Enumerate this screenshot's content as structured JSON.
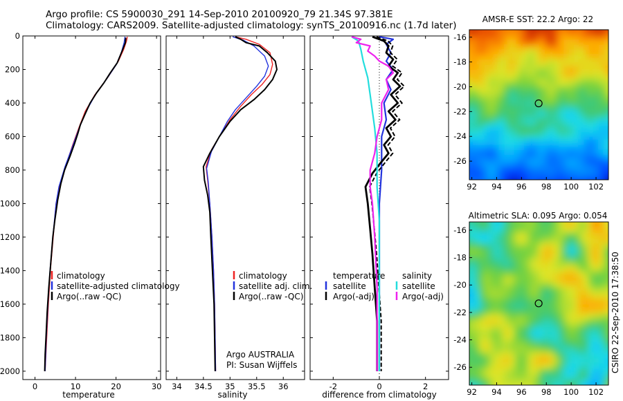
{
  "header": {
    "line1": "Argo profile: CS 5900030_291 14-Sep-2010 20100920_79 21.34S 97.381E",
    "line2": "Climatology: CARS2009. Satellite-adjusted climatology: synTS_20100916.nc (1.7d later)"
  },
  "side_text": "CSIRO 22-Sep-2010 17:38:50",
  "colors": {
    "climatology": "#ee2222",
    "satellite": "#2233dd",
    "argo": "#000000",
    "salinity_satellite": "#22dddd",
    "salinity_argo": "#ee22ee"
  },
  "chart_data": [
    {
      "type": "line",
      "xlabel": "temperature",
      "ylabel": "",
      "xlim": [
        -3,
        31
      ],
      "ylim": [
        2050,
        0
      ],
      "xticks": [
        "0",
        "10",
        "20",
        "30"
      ],
      "yticks": [
        "0",
        "200",
        "400",
        "600",
        "800",
        "1000",
        "1200",
        "1400",
        "1600",
        "1800",
        "2000"
      ],
      "legend": [
        "climatology",
        "satellite-adjusted climatology",
        "Argo(..raw -QC)"
      ],
      "series": [
        {
          "name": "climatology",
          "color": "#ee2222",
          "points": [
            [
              22.8,
              5
            ],
            [
              22.6,
              30
            ],
            [
              21.9,
              80
            ],
            [
              20.6,
              150
            ],
            [
              17.9,
              250
            ],
            [
              14.8,
              350
            ],
            [
              12.4,
              450
            ],
            [
              10.8,
              550
            ],
            [
              9.3,
              650
            ],
            [
              7.5,
              780
            ],
            [
              6.0,
              900
            ],
            [
              5.2,
              1000
            ],
            [
              4.5,
              1200
            ],
            [
              3.8,
              1400
            ],
            [
              3.3,
              1600
            ],
            [
              2.9,
              1800
            ],
            [
              2.5,
              2000
            ]
          ]
        },
        {
          "name": "satellite-adjusted climatology",
          "color": "#2233dd",
          "points": [
            [
              22.2,
              5
            ],
            [
              22.0,
              40
            ],
            [
              21.3,
              100
            ],
            [
              20.1,
              170
            ],
            [
              17.6,
              260
            ],
            [
              14.9,
              350
            ],
            [
              12.6,
              450
            ],
            [
              10.9,
              550
            ],
            [
              9.4,
              650
            ],
            [
              7.4,
              780
            ],
            [
              5.9,
              900
            ],
            [
              5.2,
              1000
            ],
            [
              4.4,
              1200
            ],
            [
              3.7,
              1400
            ],
            [
              3.2,
              1600
            ],
            [
              2.8,
              1800
            ],
            [
              2.5,
              2000
            ]
          ]
        },
        {
          "name": "Argo(..raw -QC)",
          "color": "#000000",
          "points": [
            [
              22.4,
              10
            ],
            [
              22.3,
              40
            ],
            [
              21.5,
              90
            ],
            [
              20.3,
              160
            ],
            [
              18.6,
              220
            ],
            [
              17.0,
              280
            ],
            [
              15.2,
              340
            ],
            [
              13.6,
              400
            ],
            [
              12.3,
              470
            ],
            [
              11.2,
              530
            ],
            [
              10.6,
              580
            ],
            [
              9.8,
              640
            ],
            [
              8.6,
              720
            ],
            [
              7.3,
              800
            ],
            [
              6.4,
              880
            ],
            [
              5.6,
              980
            ],
            [
              4.9,
              1100
            ],
            [
              4.4,
              1200
            ],
            [
              3.9,
              1350
            ],
            [
              3.4,
              1500
            ],
            [
              3.0,
              1650
            ],
            [
              2.7,
              1800
            ],
            [
              2.5,
              1900
            ],
            [
              2.4,
              2000
            ]
          ]
        }
      ]
    },
    {
      "type": "line",
      "xlabel": "salinity",
      "ylabel": "",
      "xlim": [
        33.8,
        36.4
      ],
      "ylim": [
        2050,
        0
      ],
      "xticks": [
        "34",
        "34.5",
        "35",
        "35.5",
        "36"
      ],
      "legend": [
        "climatology",
        "satellite adj. clim.",
        "Argo(..raw -QC)"
      ],
      "annotation": [
        "Argo AUSTRALIA",
        "PI: Susan Wijffels"
      ],
      "series": [
        {
          "name": "climatology",
          "color": "#ee2222",
          "points": [
            [
              35.1,
              5
            ],
            [
              35.3,
              20
            ],
            [
              35.55,
              50
            ],
            [
              35.75,
              100
            ],
            [
              35.8,
              170
            ],
            [
              35.75,
              230
            ],
            [
              35.6,
              290
            ],
            [
              35.4,
              350
            ],
            [
              35.2,
              420
            ],
            [
              35.0,
              500
            ],
            [
              34.82,
              590
            ],
            [
              34.65,
              680
            ],
            [
              34.55,
              780
            ],
            [
              34.58,
              860
            ],
            [
              34.62,
              1000
            ],
            [
              34.66,
              1200
            ],
            [
              34.69,
              1400
            ],
            [
              34.71,
              1600
            ],
            [
              34.72,
              1800
            ],
            [
              34.73,
              2000
            ]
          ]
        },
        {
          "name": "satellite adj. clim.",
          "color": "#2233dd",
          "points": [
            [
              35.05,
              5
            ],
            [
              35.25,
              25
            ],
            [
              35.45,
              60
            ],
            [
              35.65,
              120
            ],
            [
              35.72,
              180
            ],
            [
              35.65,
              240
            ],
            [
              35.5,
              300
            ],
            [
              35.3,
              370
            ],
            [
              35.1,
              440
            ],
            [
              34.95,
              510
            ],
            [
              34.8,
              600
            ],
            [
              34.65,
              690
            ],
            [
              34.56,
              790
            ],
            [
              34.59,
              870
            ],
            [
              34.62,
              1000
            ],
            [
              34.66,
              1200
            ],
            [
              34.69,
              1400
            ],
            [
              34.71,
              1600
            ],
            [
              34.72,
              1800
            ],
            [
              34.73,
              2000
            ]
          ]
        },
        {
          "name": "Argo(..raw -QC)",
          "color": "#000000",
          "points": [
            [
              35.1,
              5
            ],
            [
              35.2,
              20
            ],
            [
              35.3,
              40
            ],
            [
              35.55,
              60
            ],
            [
              35.7,
              100
            ],
            [
              35.85,
              150
            ],
            [
              35.88,
              200
            ],
            [
              35.8,
              260
            ],
            [
              35.65,
              320
            ],
            [
              35.45,
              380
            ],
            [
              35.2,
              440
            ],
            [
              35.0,
              510
            ],
            [
              34.8,
              600
            ],
            [
              34.62,
              700
            ],
            [
              34.5,
              780
            ],
            [
              34.52,
              860
            ],
            [
              34.58,
              950
            ],
            [
              34.62,
              1050
            ],
            [
              34.64,
              1200
            ],
            [
              34.67,
              1400
            ],
            [
              34.7,
              1600
            ],
            [
              34.71,
              1800
            ],
            [
              34.72,
              2000
            ]
          ]
        }
      ]
    },
    {
      "type": "line",
      "xlabel": "difference from climatology",
      "ylabel": "",
      "xlim": [
        -3,
        3
      ],
      "ylim": [
        2050,
        0
      ],
      "xticks": [
        "-2",
        "0",
        "2"
      ],
      "legend_temperature": {
        "heading": "temperature",
        "items": [
          "satellite",
          "Argo(-adj)"
        ]
      },
      "legend_salinity": {
        "heading": "salinity",
        "items": [
          "satellite",
          "Argo(-adj)"
        ]
      },
      "series": [
        {
          "name": "satellite",
          "group": "temperature",
          "color": "#2233dd",
          "points": [
            [
              0.0,
              5
            ],
            [
              0.6,
              20
            ],
            [
              0.3,
              50
            ],
            [
              0.5,
              100
            ],
            [
              0.3,
              150
            ],
            [
              0.6,
              200
            ],
            [
              0.3,
              260
            ],
            [
              0.5,
              320
            ],
            [
              0.2,
              400
            ],
            [
              0.3,
              500
            ],
            [
              0.1,
              600
            ],
            [
              0.1,
              800
            ],
            [
              0.0,
              1000
            ],
            [
              0.0,
              1500
            ],
            [
              0.0,
              2000
            ]
          ]
        },
        {
          "name": "Argo(-adj)",
          "group": "temperature",
          "color": "#000000",
          "points": [
            [
              -0.3,
              5
            ],
            [
              0.2,
              30
            ],
            [
              0.4,
              60
            ],
            [
              0.3,
              100
            ],
            [
              0.6,
              140
            ],
            [
              0.4,
              180
            ],
            [
              0.8,
              220
            ],
            [
              0.6,
              260
            ],
            [
              0.9,
              300
            ],
            [
              0.5,
              350
            ],
            [
              0.8,
              400
            ],
            [
              0.4,
              450
            ],
            [
              0.7,
              500
            ],
            [
              0.3,
              550
            ],
            [
              0.5,
              600
            ],
            [
              0.2,
              650
            ],
            [
              0.4,
              700
            ],
            [
              0.1,
              750
            ],
            [
              -0.3,
              820
            ],
            [
              -0.6,
              900
            ],
            [
              -0.5,
              1000
            ],
            [
              -0.4,
              1150
            ],
            [
              -0.3,
              1300
            ],
            [
              -0.2,
              1500
            ],
            [
              -0.1,
              1700
            ],
            [
              -0.1,
              1900
            ],
            [
              -0.1,
              2000
            ]
          ]
        },
        {
          "name": "satellite",
          "group": "salinity",
          "color": "#22dddd",
          "points": [
            [
              -1.2,
              5
            ],
            [
              -0.9,
              30
            ],
            [
              -0.8,
              80
            ],
            [
              -0.7,
              150
            ],
            [
              -0.5,
              250
            ],
            [
              -0.4,
              350
            ],
            [
              -0.3,
              450
            ],
            [
              -0.2,
              550
            ],
            [
              -0.1,
              700
            ],
            [
              -0.1,
              900
            ],
            [
              0.0,
              1100
            ],
            [
              0.0,
              1500
            ],
            [
              0.0,
              2000
            ]
          ]
        },
        {
          "name": "Argo(-adj)",
          "group": "salinity",
          "color": "#ee22ee",
          "points": [
            [
              -1.2,
              5
            ],
            [
              -0.8,
              20
            ],
            [
              -1.0,
              40
            ],
            [
              -0.4,
              60
            ],
            [
              -0.5,
              90
            ],
            [
              -0.2,
              120
            ],
            [
              0.0,
              150
            ],
            [
              0.4,
              180
            ],
            [
              0.6,
              220
            ],
            [
              0.3,
              260
            ],
            [
              0.4,
              320
            ],
            [
              0.1,
              400
            ],
            [
              0.1,
              500
            ],
            [
              -0.1,
              600
            ],
            [
              -0.2,
              700
            ],
            [
              -0.4,
              800
            ],
            [
              -0.4,
              900
            ],
            [
              -0.3,
              1000
            ],
            [
              -0.2,
              1200
            ],
            [
              -0.1,
              1500
            ],
            [
              -0.1,
              2000
            ]
          ]
        }
      ]
    },
    {
      "type": "heatmap",
      "title": "AMSR-E SST: 22.2 Argo: 22",
      "xlim": [
        91.8,
        103
      ],
      "ylim": [
        -27.5,
        -15.4
      ],
      "xticks": [
        "92",
        "94",
        "96",
        "98",
        "100",
        "102"
      ],
      "yticks": [
        "-16",
        "-18",
        "-20",
        "-22",
        "-24",
        "-26"
      ],
      "marker": {
        "lon": 97.38,
        "lat": -21.34
      },
      "value_range": [
        19.5,
        24.5
      ]
    },
    {
      "type": "heatmap",
      "title": "Altimetric SLA: 0.095 Argo: 0.054",
      "xlim": [
        91.8,
        103
      ],
      "ylim": [
        -27.3,
        -15.4
      ],
      "xticks": [
        "92",
        "94",
        "96",
        "98",
        "100",
        "102"
      ],
      "yticks": [
        "-16",
        "-18",
        "-20",
        "-22",
        "-24",
        "-26"
      ],
      "marker": {
        "lon": 97.38,
        "lat": -21.34
      },
      "value_range": [
        -0.05,
        0.2
      ]
    }
  ]
}
